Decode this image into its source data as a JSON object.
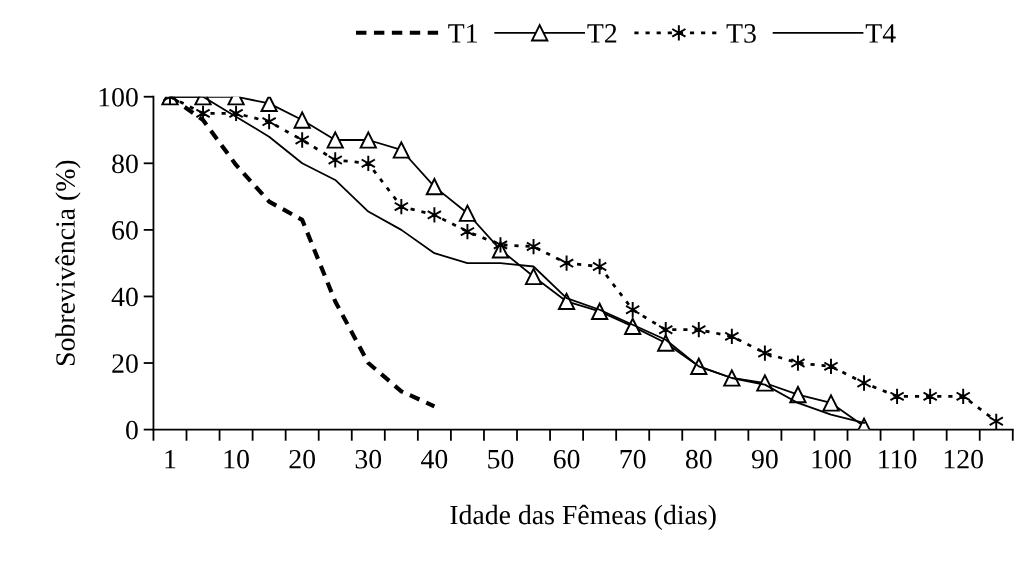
{
  "chart_data": {
    "type": "line",
    "xlabel": "Idade das Fêmeas (dias)",
    "ylabel": "Sobrevivência (%)",
    "categories": [
      "1",
      null,
      "10",
      null,
      "20",
      null,
      "30",
      null,
      "40",
      null,
      "50",
      null,
      "60",
      null,
      "70",
      null,
      "80",
      null,
      "90",
      null,
      "100",
      null,
      "110",
      null,
      "120",
      null
    ],
    "series": [
      {
        "name": "T1",
        "color": "#000000",
        "line_style": "dashed",
        "marker": "none",
        "values": [
          100,
          93,
          79.5,
          68.5,
          63,
          38.5,
          20,
          11.5,
          7,
          null,
          null,
          null,
          null,
          null,
          null,
          null,
          null,
          null,
          null,
          null,
          null,
          null,
          null,
          null,
          null,
          null
        ]
      },
      {
        "name": "T2",
        "color": "#000000",
        "line_style": "solid",
        "marker": "triangle",
        "values": [
          100,
          100,
          100,
          98,
          93,
          87,
          87,
          84,
          73,
          65,
          54,
          46,
          38.5,
          35.5,
          31,
          26,
          19,
          15.5,
          14,
          10.5,
          8,
          1,
          null,
          null,
          null,
          null
        ]
      },
      {
        "name": "T3",
        "color": "#000000",
        "line_style": "dotted",
        "marker": "cross",
        "values": [
          100,
          95,
          95,
          92.5,
          87,
          81,
          80,
          67,
          64.5,
          59.5,
          55.5,
          55,
          50,
          49,
          36,
          30,
          30,
          28,
          23,
          20,
          19,
          14,
          10,
          10,
          10,
          2.5
        ]
      },
      {
        "name": "T4",
        "color": "#000000",
        "line_style": "solid",
        "marker": "none",
        "values": [
          100,
          100,
          94,
          88,
          80,
          75,
          65.5,
          60,
          53,
          50,
          50,
          49,
          39.5,
          36,
          31.5,
          27,
          19,
          15.5,
          13.5,
          8,
          4.5,
          2,
          null,
          null,
          null,
          null
        ]
      }
    ],
    "ylim": [
      0,
      100
    ],
    "yticks": [
      0,
      20,
      40,
      60,
      80,
      100
    ],
    "grid": false,
    "legend": "top"
  }
}
